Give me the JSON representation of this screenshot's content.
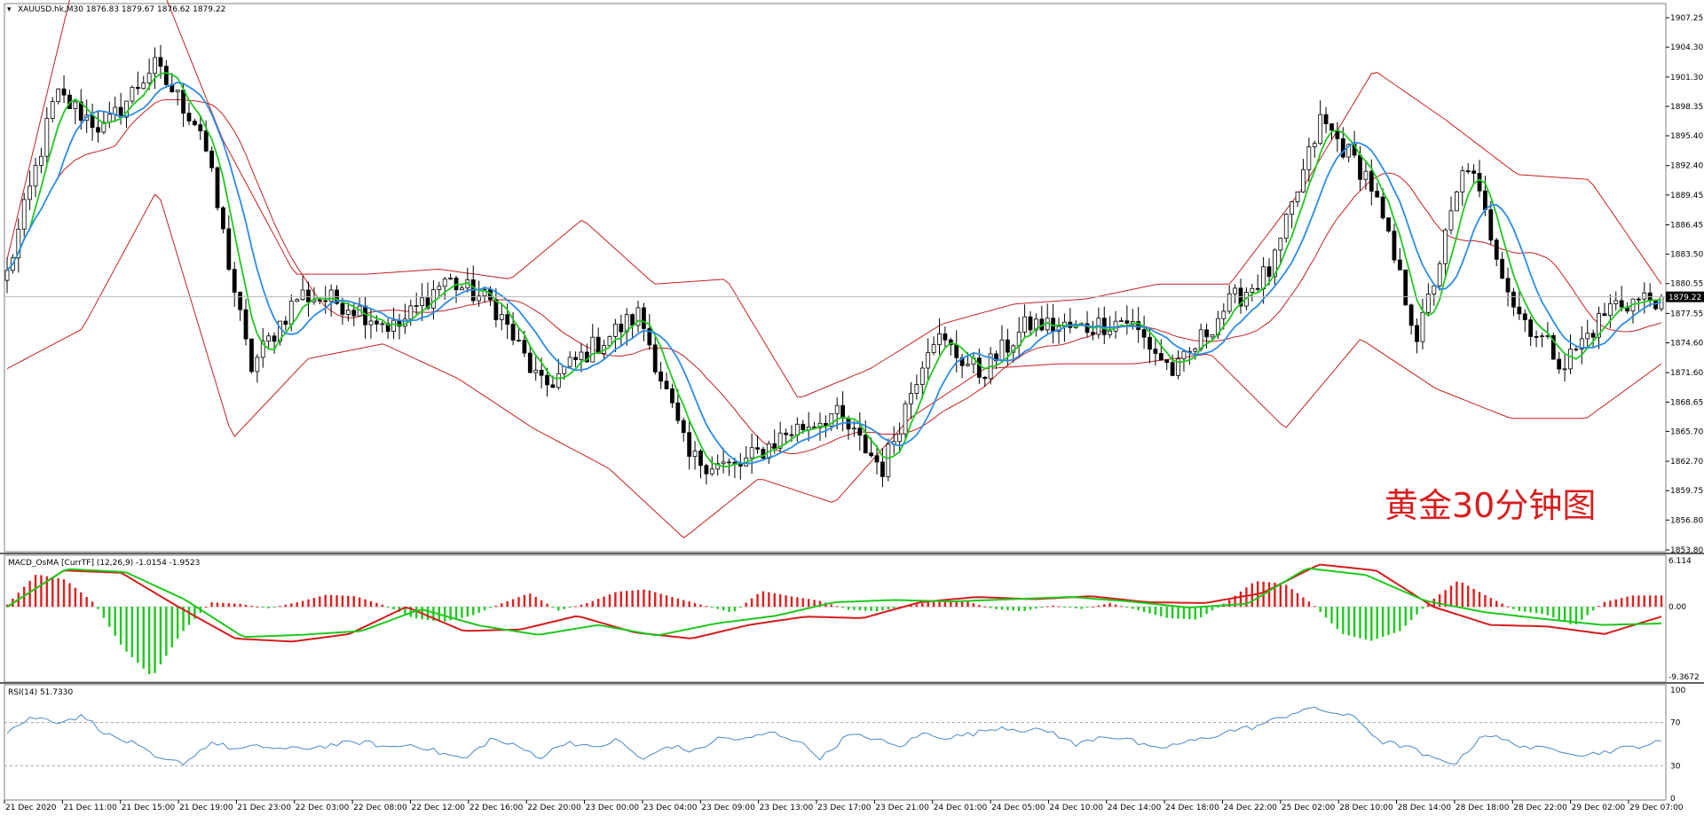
{
  "header": {
    "symbol_line": "XAUUSD.hk,M30  1876.83 1879.67 1876.62 1879.22",
    "current_price_label": "1879.22"
  },
  "annotation": {
    "text": "黄金30分钟图",
    "color": "#d81e1e"
  },
  "macd_panel": {
    "label": "MACD_OsMA [CurrTF] (12,26,9) -1.0154 -1.9523",
    "top_value_label": "6.114",
    "mid_value_label": "0.00",
    "bottom_value_label": "-9.3672"
  },
  "rsi_panel": {
    "label": "RSI(14) 51.7330",
    "levels": [
      "100",
      "70",
      "30",
      "0"
    ]
  },
  "colors": {
    "bull_candle": "#ffffff",
    "bear_candle": "#000000",
    "bollinger": "#c42020",
    "fast_ma": "#1ec81e",
    "slow_ma": "#2a8ce6",
    "macd_line": "#d41c1c",
    "signal_line": "#1ec81e",
    "hist_positive": "#e01e1e",
    "hist_negative": "#1ec81e",
    "rsi_line": "#4a86c8",
    "grid_level": "#a0a0a0"
  },
  "chart_data": [
    {
      "type": "candlestick",
      "title": "XAUUSD.hk,M30",
      "y_ticks": [
        "1907.25",
        "1904.30",
        "1901.30",
        "1898.35",
        "1895.40",
        "1892.40",
        "1889.45",
        "1886.45",
        "1883.50",
        "1880.55",
        "1877.55",
        "1874.60",
        "1871.60",
        "1868.65",
        "1865.70",
        "1862.70",
        "1859.75",
        "1856.80",
        "1853.80"
      ],
      "ylim": [
        1853.8,
        1908.5
      ],
      "x_ticks": [
        "21 Dec 2020",
        "21 Dec 11:00",
        "21 Dec 15:00",
        "21 Dec 19:00",
        "21 Dec 23:00",
        "22 Dec 03:00",
        "22 Dec 08:00",
        "22 Dec 12:00",
        "22 Dec 16:00",
        "22 Dec 20:00",
        "23 Dec 00:00",
        "23 Dec 04:00",
        "23 Dec 09:00",
        "23 Dec 13:00",
        "23 Dec 17:00",
        "23 Dec 21:00",
        "24 Dec 01:00",
        "24 Dec 05:00",
        "24 Dec 10:00",
        "24 Dec 14:00",
        "24 Dec 18:00",
        "24 Dec 22:00",
        "25 Dec 02:00",
        "28 Dec 10:00",
        "28 Dec 14:00",
        "28 Dec 18:00",
        "28 Dec 22:00",
        "29 Dec 02:00",
        "29 Dec 07:00"
      ],
      "close_waypoints": [
        1881.5,
        1899.5,
        1896,
        1902.5,
        1896,
        1872,
        1879.5,
        1878.5,
        1876,
        1881,
        1878.5,
        1870,
        1874,
        1877.5,
        1863,
        1862,
        1865.5,
        1867.5,
        1862,
        1875.5,
        1871.5,
        1876.5,
        1876,
        1877,
        1871.5,
        1878,
        1882,
        1897,
        1891,
        1875,
        1893,
        1878,
        1872.5,
        1878.5,
        1879.2
      ],
      "bb_upper_waypoints": [
        1883,
        1913,
        1913,
        1895,
        1881.5,
        1881.5,
        1882,
        1881,
        1887,
        1880.5,
        1881,
        1869,
        1872,
        1876.5,
        1878.5,
        1879,
        1880.5,
        1880.5,
        1890,
        1902,
        1897,
        1891.5,
        1891,
        1880.5
      ],
      "bb_lower_waypoints": [
        1872,
        1876,
        1890,
        1865,
        1873,
        1874.5,
        1871,
        1866,
        1862,
        1855,
        1861,
        1858.5,
        1867,
        1872,
        1872.5,
        1872.5,
        1873.5,
        1866,
        1875,
        1870,
        1867,
        1867,
        1872.5
      ],
      "current_price": 1879.22
    },
    {
      "type": "bar",
      "name": "MACD_OsMA",
      "ylim": [
        -9.3672,
        6.114
      ],
      "osma_waypoints": [
        0.3,
        4.3,
        3.6,
        0.5,
        -5.5,
        -9.3,
        -3.5,
        0.6,
        0.4,
        -0.2,
        0.6,
        1.6,
        1.4,
        0.2,
        -1.5,
        -2.0,
        -1.2,
        0.4,
        1.8,
        -0.5,
        0.5,
        2.0,
        2.3,
        1.2,
        0.2,
        -0.8,
        2.1,
        1.4,
        0.8,
        -0.4,
        -0.6,
        0.1,
        0.8,
        0.8,
        -0.3,
        -0.6,
        0.2,
        -0.3,
        0.5,
        -0.5,
        -1.5,
        -1.7,
        0.6,
        3.4,
        3.1,
        0.3,
        -3.6,
        -4.5,
        -3.2,
        0.6,
        3.5,
        1.4,
        -0.5,
        -1.0,
        -2.5,
        0.6,
        1.5,
        1.5
      ],
      "macd_waypoints": [
        0,
        4.8,
        4.5,
        0,
        -4.2,
        -4.6,
        -3.6,
        0,
        -3.2,
        -3,
        -1.2,
        -3.4,
        -4.2,
        -2.4,
        -1.3,
        -1.5,
        0.6,
        1.3,
        1,
        1.4,
        0.6,
        0.5,
        1.8,
        5.6,
        4.8,
        0,
        -2.4,
        -2.6,
        -3.6,
        -1.3
      ],
      "signal_waypoints": [
        0,
        5.0,
        4.6,
        1,
        -4.0,
        -3.7,
        -3.2,
        -0.3,
        -2.5,
        -3.7,
        -2.4,
        -3.8,
        -2.2,
        -1.2,
        0.6,
        0.9,
        0.7,
        1.0,
        1.3,
        0.7,
        -0.1,
        0.4,
        5.1,
        4.2,
        0.8,
        -0.7,
        -1.6,
        -2.4,
        -2.2
      ]
    },
    {
      "type": "line",
      "name": "RSI(14)",
      "ylim": [
        0,
        100
      ],
      "levels": [
        70,
        30
      ],
      "values_waypoints": [
        62,
        75,
        71,
        76,
        58,
        50,
        35,
        33,
        52,
        45,
        48,
        45,
        47,
        50,
        52,
        47,
        50,
        42,
        36,
        55,
        48,
        38,
        53,
        46,
        54,
        35,
        49,
        43,
        56,
        54,
        61,
        54,
        37,
        58,
        56,
        47,
        60,
        56,
        60,
        66,
        63,
        62,
        49,
        58,
        55,
        45,
        50,
        55,
        62,
        66,
        74,
        83,
        80,
        74,
        52,
        48,
        36,
        33,
        60,
        52,
        46,
        45,
        40,
        44,
        48,
        52
      ]
    }
  ]
}
